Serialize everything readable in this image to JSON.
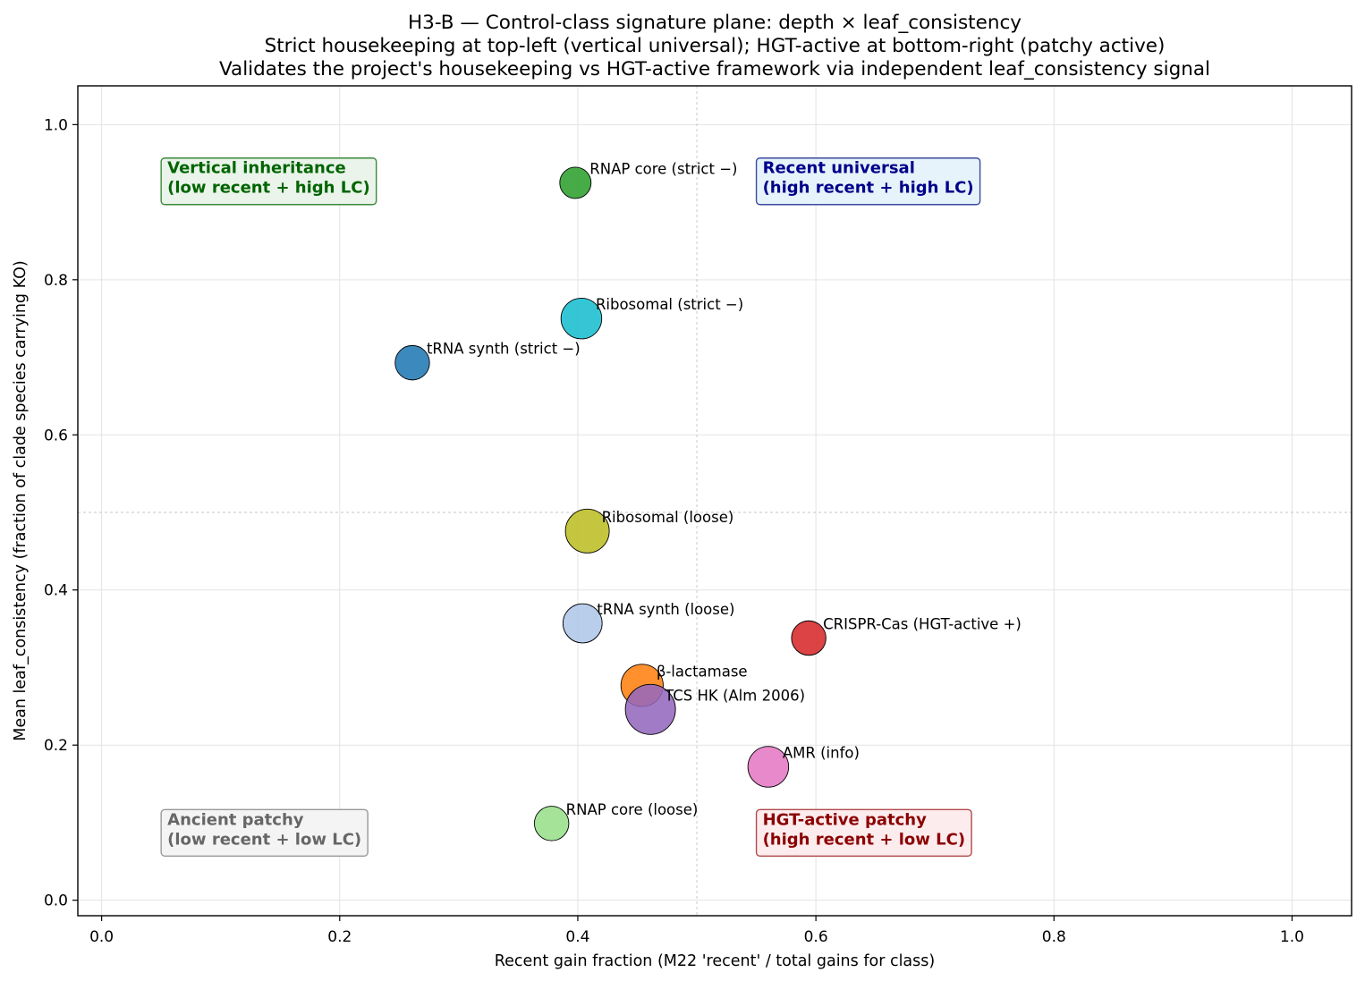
{
  "chart_data": {
    "type": "scatter",
    "title": [
      "H3-B — Control-class signature plane: depth × leaf_consistency",
      "Strict housekeeping at top-left (vertical universal); HGT-active at bottom-right (patchy active)",
      "Validates the project's housekeeping vs HGT-active framework via independent leaf_consistency signal"
    ],
    "xlabel": "Recent gain fraction (M22 'recent' / total gains for class)",
    "ylabel": "Mean leaf_consistency (fraction of clade species carrying KO)",
    "xlim": [
      -0.02,
      1.05
    ],
    "ylim": [
      -0.02,
      1.05
    ],
    "xticks": [
      "0.0",
      "0.2",
      "0.4",
      "0.6",
      "0.8",
      "1.0"
    ],
    "yticks": [
      "0.0",
      "0.2",
      "0.4",
      "0.6",
      "0.8",
      "1.0"
    ],
    "grid": true,
    "reference_lines": {
      "x": 0.5,
      "y": 0.5
    },
    "points": [
      {
        "label": "RNAP core (strict −)",
        "x": 0.398,
        "y": 0.925,
        "size": 1.0,
        "color": "#2ca02c"
      },
      {
        "label": "Ribosomal (strict −)",
        "x": 0.403,
        "y": 0.75,
        "size": 1.3,
        "color": "#17becf"
      },
      {
        "label": "tRNA synth (strict −)",
        "x": 0.261,
        "y": 0.693,
        "size": 1.1,
        "color": "#1f77b4"
      },
      {
        "label": "Ribosomal (loose)",
        "x": 0.408,
        "y": 0.476,
        "size": 1.4,
        "color": "#bcbd22"
      },
      {
        "label": "tRNA synth (loose)",
        "x": 0.404,
        "y": 0.357,
        "size": 1.25,
        "color": "#aec7e8"
      },
      {
        "label": "CRISPR-Cas (HGT-active +)",
        "x": 0.594,
        "y": 0.338,
        "size": 1.1,
        "color": "#d62728"
      },
      {
        "label": "β-lactamase",
        "x": 0.454,
        "y": 0.277,
        "size": 1.35,
        "color": "#ff7f0e"
      },
      {
        "label": "TCS HK (Alm 2006)",
        "x": 0.461,
        "y": 0.246,
        "size": 1.6,
        "color": "#9467bd"
      },
      {
        "label": "AMR (info)",
        "x": 0.56,
        "y": 0.172,
        "size": 1.3,
        "color": "#e377c2"
      },
      {
        "label": "RNAP core (loose)",
        "x": 0.378,
        "y": 0.099,
        "size": 1.1,
        "color": "#98df8a"
      }
    ],
    "quadrant_labels": [
      {
        "lines": [
          "Vertical inheritance",
          "(low recent + high LC)"
        ],
        "x": 0.05,
        "y": 0.92,
        "color": "#006400",
        "fill": "#eaf4ea",
        "border": "#3a8a3a"
      },
      {
        "lines": [
          "Recent universal",
          "(high recent + high LC)"
        ],
        "x": 0.55,
        "y": 0.92,
        "color": "#00008b",
        "fill": "#e6f3fa",
        "border": "#3a4aa0"
      },
      {
        "lines": [
          "Ancient patchy",
          "(low recent + low LC)"
        ],
        "x": 0.05,
        "y": 0.08,
        "color": "#666666",
        "fill": "#f4f4f4",
        "border": "#999999"
      },
      {
        "lines": [
          "HGT-active patchy",
          "(high recent + low LC)"
        ],
        "x": 0.55,
        "y": 0.08,
        "color": "#8b0000",
        "fill": "#fdecee",
        "border": "#b04a4a"
      }
    ]
  }
}
